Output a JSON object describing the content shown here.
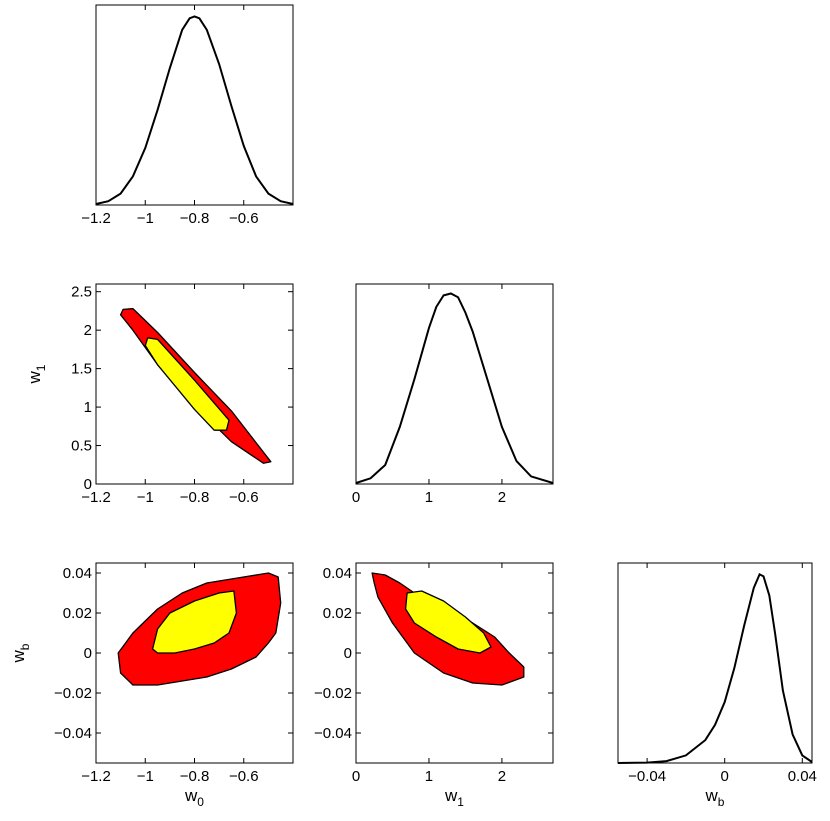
{
  "colors": {
    "outer_contour": "#ff0000",
    "inner_contour": "#ffff00",
    "line": "#000000",
    "background": "#ffffff"
  },
  "chart_data": [
    {
      "id": "w0-marginal",
      "type": "line",
      "xlim": [
        -1.2,
        -0.4
      ],
      "xticks": [
        "-1.2",
        "-1",
        "-0.8",
        "-0.6"
      ],
      "xlabel": "",
      "ylabel": "",
      "x": [
        -1.2,
        -1.15,
        -1.1,
        -1.05,
        -1.0,
        -0.95,
        -0.9,
        -0.85,
        -0.82,
        -0.8,
        -0.78,
        -0.75,
        -0.7,
        -0.65,
        -0.6,
        -0.55,
        -0.5,
        -0.45,
        -0.4
      ],
      "y": [
        0.005,
        0.02,
        0.06,
        0.15,
        0.3,
        0.5,
        0.72,
        0.92,
        0.98,
        0.99,
        0.98,
        0.92,
        0.74,
        0.52,
        0.31,
        0.15,
        0.06,
        0.02,
        0.005
      ]
    },
    {
      "id": "w1-vs-w0",
      "type": "contour",
      "xlim": [
        -1.2,
        -0.4
      ],
      "ylim": [
        0,
        2.6
      ],
      "xticks": [
        "-1.2",
        "-1",
        "-0.8",
        "-0.6"
      ],
      "yticks": [
        "0",
        "0.5",
        "1",
        "1.5",
        "2",
        "2.5"
      ],
      "xlabel": "",
      "ylabel": "w",
      "ylabel_sub": "1",
      "regions": [
        {
          "level": "outer",
          "points": [
            [
              -1.09,
              2.27
            ],
            [
              -1.05,
              2.28
            ],
            [
              -0.95,
              1.97
            ],
            [
              -0.8,
              1.45
            ],
            [
              -0.65,
              0.95
            ],
            [
              -0.49,
              0.29
            ],
            [
              -0.52,
              0.27
            ],
            [
              -0.65,
              0.55
            ],
            [
              -0.8,
              1.02
            ],
            [
              -0.95,
              1.55
            ],
            [
              -1.05,
              2.0
            ],
            [
              -1.1,
              2.2
            ]
          ]
        },
        {
          "level": "inner",
          "points": [
            [
              -0.99,
              1.9
            ],
            [
              -0.95,
              1.88
            ],
            [
              -0.8,
              1.35
            ],
            [
              -0.66,
              0.83
            ],
            [
              -0.67,
              0.7
            ],
            [
              -0.72,
              0.7
            ],
            [
              -0.8,
              0.97
            ],
            [
              -0.95,
              1.55
            ],
            [
              -1.0,
              1.8
            ]
          ]
        }
      ]
    },
    {
      "id": "w1-marginal",
      "type": "line",
      "xlim": [
        0,
        2.7
      ],
      "xticks": [
        "0",
        "1",
        "2"
      ],
      "xlabel": "",
      "ylabel": "",
      "x": [
        0,
        0.2,
        0.4,
        0.6,
        0.8,
        1.0,
        1.1,
        1.2,
        1.3,
        1.4,
        1.5,
        1.6,
        1.8,
        2.0,
        2.2,
        2.4,
        2.7
      ],
      "y": [
        0.005,
        0.03,
        0.1,
        0.3,
        0.55,
        0.82,
        0.93,
        0.99,
        1.0,
        0.98,
        0.9,
        0.8,
        0.55,
        0.3,
        0.12,
        0.04,
        0.005
      ]
    },
    {
      "id": "wb-vs-w0",
      "type": "contour",
      "xlim": [
        -1.2,
        -0.4
      ],
      "ylim": [
        -0.055,
        0.045
      ],
      "xticks": [
        "-1.2",
        "-1",
        "-0.8",
        "-0.6"
      ],
      "yticks": [
        "-0.04",
        "-0.02",
        "0",
        "0.02",
        "0.04"
      ],
      "xlabel": "w",
      "xlabel_sub": "0",
      "ylabel": "w",
      "ylabel_sub": "b",
      "regions": [
        {
          "level": "outer",
          "points": [
            [
              -1.1,
              -0.01
            ],
            [
              -1.11,
              0.0
            ],
            [
              -1.05,
              0.01
            ],
            [
              -0.95,
              0.022
            ],
            [
              -0.85,
              0.03
            ],
            [
              -0.75,
              0.035
            ],
            [
              -0.65,
              0.037
            ],
            [
              -0.55,
              0.039
            ],
            [
              -0.5,
              0.04
            ],
            [
              -0.46,
              0.038
            ],
            [
              -0.45,
              0.025
            ],
            [
              -0.47,
              0.01
            ],
            [
              -0.5,
              0.005
            ],
            [
              -0.55,
              -0.002
            ],
            [
              -0.65,
              -0.008
            ],
            [
              -0.75,
              -0.012
            ],
            [
              -0.85,
              -0.014
            ],
            [
              -0.95,
              -0.016
            ],
            [
              -1.05,
              -0.016
            ]
          ]
        },
        {
          "level": "inner",
          "points": [
            [
              -0.97,
              0.002
            ],
            [
              -0.95,
              0.012
            ],
            [
              -0.9,
              0.02
            ],
            [
              -0.8,
              0.026
            ],
            [
              -0.7,
              0.03
            ],
            [
              -0.64,
              0.031
            ],
            [
              -0.63,
              0.02
            ],
            [
              -0.66,
              0.01
            ],
            [
              -0.72,
              0.005
            ],
            [
              -0.8,
              0.002
            ],
            [
              -0.88,
              0.0
            ],
            [
              -0.95,
              0.0
            ]
          ]
        }
      ]
    },
    {
      "id": "wb-vs-w1",
      "type": "contour",
      "xlim": [
        0,
        2.7
      ],
      "ylim": [
        -0.055,
        0.045
      ],
      "xticks": [
        "0",
        "1",
        "2"
      ],
      "yticks": [
        "-0.04",
        "-0.02",
        "0",
        "0.02",
        "0.04"
      ],
      "xlabel": "w",
      "xlabel_sub": "1",
      "ylabel": "",
      "regions": [
        {
          "level": "outer",
          "points": [
            [
              0.25,
              0.035
            ],
            [
              0.22,
              0.04
            ],
            [
              0.4,
              0.039
            ],
            [
              0.6,
              0.035
            ],
            [
              0.8,
              0.03
            ],
            [
              1.2,
              0.022
            ],
            [
              1.6,
              0.015
            ],
            [
              1.9,
              0.008
            ],
            [
              2.1,
              0.0
            ],
            [
              2.3,
              -0.007
            ],
            [
              2.3,
              -0.012
            ],
            [
              2.0,
              -0.016
            ],
            [
              1.6,
              -0.015
            ],
            [
              1.2,
              -0.01
            ],
            [
              0.8,
              0.0
            ],
            [
              0.5,
              0.015
            ],
            [
              0.3,
              0.028
            ]
          ]
        },
        {
          "level": "inner",
          "points": [
            [
              0.7,
              0.03
            ],
            [
              0.9,
              0.031
            ],
            [
              1.2,
              0.026
            ],
            [
              1.5,
              0.018
            ],
            [
              1.75,
              0.01
            ],
            [
              1.85,
              0.003
            ],
            [
              1.7,
              0.0
            ],
            [
              1.4,
              0.002
            ],
            [
              1.1,
              0.008
            ],
            [
              0.8,
              0.015
            ],
            [
              0.68,
              0.022
            ]
          ]
        }
      ]
    },
    {
      "id": "wb-marginal",
      "type": "line",
      "xlim": [
        -0.055,
        0.045
      ],
      "xticks": [
        "-0.04",
        "0",
        "0.04"
      ],
      "xlabel": "w",
      "xlabel_sub": "b",
      "ylabel": "",
      "x": [
        -0.055,
        -0.04,
        -0.03,
        -0.02,
        -0.01,
        -0.005,
        0.0,
        0.005,
        0.01,
        0.015,
        0.018,
        0.02,
        0.023,
        0.026,
        0.03,
        0.035,
        0.04,
        0.045
      ],
      "y": [
        0.0,
        0.002,
        0.01,
        0.04,
        0.12,
        0.2,
        0.32,
        0.5,
        0.72,
        0.92,
        0.99,
        0.98,
        0.88,
        0.68,
        0.38,
        0.15,
        0.04,
        0.005
      ]
    }
  ]
}
